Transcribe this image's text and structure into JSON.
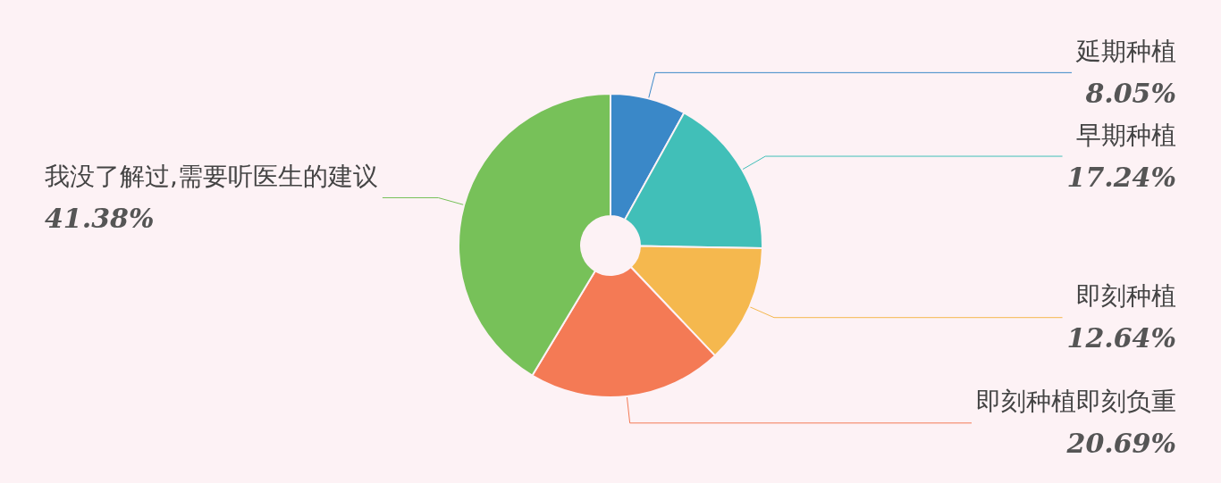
{
  "chart_data": {
    "type": "donut",
    "categories": [
      "延期种植",
      "早期种植",
      "即刻种植",
      "即刻种植即刻负重",
      "我没了解过,需要听医生的建议"
    ],
    "values": [
      8.05,
      17.24,
      12.64,
      20.69,
      41.38
    ],
    "value_labels": [
      "8.05%",
      "17.24%",
      "12.64%",
      "20.69%",
      "41.38%"
    ],
    "colors": [
      "#3a88c8",
      "#41bfb8",
      "#f5b84e",
      "#f47a55",
      "#77c159"
    ],
    "legend": false
  }
}
